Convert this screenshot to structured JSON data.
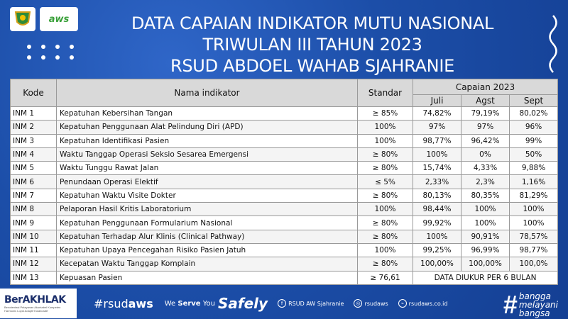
{
  "title": {
    "line1": "DATA CAPAIAN INDIKATOR MUTU NASIONAL",
    "line2": "TRIWULAN III TAHUN 2023",
    "line3": "RSUD ABDOEL WAHAB SJAHRANIE"
  },
  "logos": {
    "second": "aws"
  },
  "table": {
    "headers": {
      "kode": "Kode",
      "nama": "Nama indikator",
      "standar": "Standar",
      "capaian": "Capaian 2023",
      "juli": "Juli",
      "agst": "Agst",
      "sept": "Sept"
    },
    "rows": [
      {
        "kode": "INM 1",
        "nama": "Kepatuhan Kebersihan Tangan",
        "standar": "≥ 85%",
        "juli": "74,82%",
        "agst": "79,19%",
        "sept": "80,02%"
      },
      {
        "kode": "INM 2",
        "nama": "Kepatuhan Penggunaan Alat Pelindung Diri (APD)",
        "standar": "100%",
        "juli": "97%",
        "agst": "97%",
        "sept": "96%"
      },
      {
        "kode": "INM 3",
        "nama": "Kepatuhan Identifikasi Pasien",
        "standar": "100%",
        "juli": "98,77%",
        "agst": "96,42%",
        "sept": "99%"
      },
      {
        "kode": "INM 4",
        "nama": "Waktu Tanggap Operasi Seksio Sesarea Emergensi",
        "standar": "≥ 80%",
        "juli": "100%",
        "agst": "0%",
        "sept": "50%"
      },
      {
        "kode": "INM 5",
        "nama": "Waktu Tunggu Rawat Jalan",
        "standar": "≥ 80%",
        "juli": "15,74%",
        "agst": "4,33%",
        "sept": "9,88%"
      },
      {
        "kode": "INM 6",
        "nama": "Penundaan Operasi Elektif",
        "standar": "≤ 5%",
        "juli": "2,33%",
        "agst": "2,3%",
        "sept": "1,16%"
      },
      {
        "kode": "INM 7",
        "nama": "Kepatuhan Waktu Visite Dokter",
        "standar": "≥ 80%",
        "juli": "80,13%",
        "agst": "80,35%",
        "sept": "81,29%"
      },
      {
        "kode": "INM 8",
        "nama": "Pelaporan Hasil Kritis Laboratorium",
        "standar": "100%",
        "juli": "98,44%",
        "agst": "100%",
        "sept": "100%"
      },
      {
        "kode": "INM 9",
        "nama": "Kepatuhan Penggunaan Formularium Nasional",
        "standar": "≥ 80%",
        "juli": "99,92%",
        "agst": "100%",
        "sept": "100%"
      },
      {
        "kode": "INM 10",
        "nama": "Kepatuhan Terhadap Alur Klinis (Clinical Pathway)",
        "standar": "≥ 80%",
        "juli": "100%",
        "agst": "90,91%",
        "sept": "78,57%"
      },
      {
        "kode": "INM 11",
        "nama": "Kepatuhan Upaya Pencegahan Risiko Pasien Jatuh",
        "standar": "100%",
        "juli": "99,25%",
        "agst": "96,99%",
        "sept": "98,77%"
      },
      {
        "kode": "INM 12",
        "nama": "Kecepatan Waktu Tanggap Komplain",
        "standar": "≥ 80%",
        "juli": "100,00%",
        "agst": "100,00%",
        "sept": "100,0%"
      }
    ],
    "last_row": {
      "kode": "INM 13",
      "nama": "Kepuasan Pasien",
      "standar": "≥ 76,61",
      "note": "DATA DIUKUR PER 6 BULAN"
    }
  },
  "footer": {
    "berakhlak": "BerAKHLAK",
    "berakhlak_sub": "Berorientasi Pelayanan Akuntabel Kompeten Harmonis Loyal Adaptif Kolaboratif",
    "hashtag_prefix": "#rsud",
    "hashtag_bold": "aws",
    "serve_prefix": "We ",
    "serve_bold": "Serve",
    "serve_suffix": " You",
    "safely": "Safely",
    "facebook": "RSUD AW Sjahranie",
    "instagram": "rsudaws",
    "website": "rsudaws.co.id",
    "bangga1": "bangga",
    "bangga2": "melayani",
    "bangga3": "bangsa"
  }
}
